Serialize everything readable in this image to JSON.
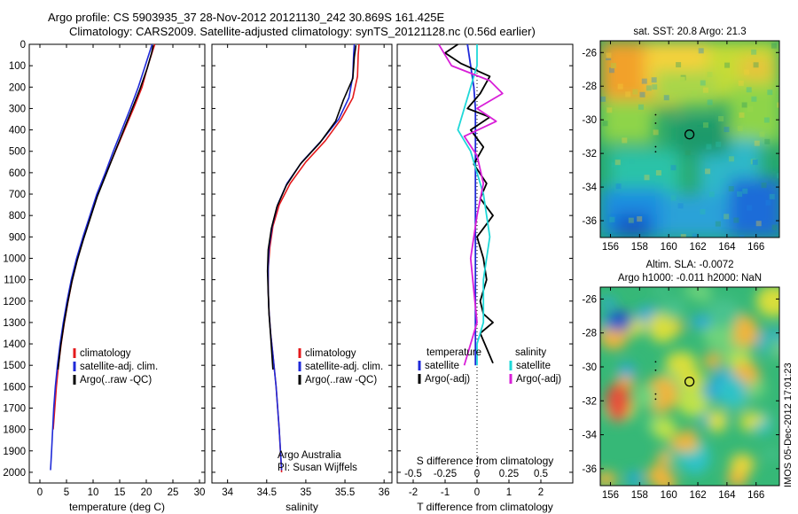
{
  "header": {
    "line1": "Argo profile: CS 5903935_37 28-Nov-2012 20121130_242 30.869S 161.425E",
    "line2": "Climatology: CARS2009. Satellite-adjusted climatology: synTS_20121128.nc (0.56d earlier)"
  },
  "colors": {
    "climatology": "#e41a1c",
    "satellite": "#1f2ad8",
    "argo": "#000000",
    "salinity_satellite": "#1fd8d8",
    "salinity_argo": "#d81fd8",
    "marker": "#000000"
  },
  "chart_data": [
    {
      "type": "line",
      "panel": "temperature",
      "xlabel": "temperature (deg C)",
      "xlim": [
        -2,
        31
      ],
      "xticks": [
        0,
        5,
        10,
        15,
        20,
        25,
        30
      ],
      "ylabel": "",
      "ylim": [
        2050,
        0
      ],
      "yticks": [
        0,
        100,
        200,
        300,
        400,
        500,
        600,
        700,
        800,
        900,
        1000,
        1100,
        1200,
        1300,
        1400,
        1500,
        1600,
        1700,
        1800,
        1900,
        2000
      ],
      "legend": {
        "placement": "lower-middle",
        "entries": [
          "climatology",
          "satellite-adj. clim.",
          "Argo(..raw -QC)"
        ]
      },
      "series": [
        {
          "name": "climatology",
          "color_key": "climatology",
          "x": [
            21.6,
            21.2,
            20.3,
            19.2,
            17.6,
            15.9,
            14.2,
            12.5,
            10.9,
            9.6,
            8.3,
            7.1,
            6.1,
            5.3,
            4.6,
            4.0,
            3.5,
            3.1,
            2.8,
            2.5
          ],
          "y": [
            0,
            30,
            100,
            200,
            300,
            400,
            500,
            600,
            700,
            800,
            900,
            1000,
            1100,
            1200,
            1300,
            1400,
            1500,
            1600,
            1700,
            1800
          ]
        },
        {
          "name": "satellite-adj. clim.",
          "color_key": "satellite",
          "x": [
            21.1,
            20.7,
            19.8,
            18.5,
            17.0,
            15.4,
            13.8,
            12.3,
            10.7,
            9.4,
            8.1,
            6.9,
            5.9,
            5.1,
            4.4,
            3.8,
            3.3,
            2.9,
            2.6,
            2.4,
            2.2,
            2.0
          ],
          "y": [
            0,
            30,
            100,
            200,
            300,
            400,
            500,
            600,
            700,
            800,
            900,
            1000,
            1100,
            1200,
            1300,
            1400,
            1500,
            1600,
            1700,
            1800,
            1900,
            1990
          ]
        },
        {
          "name": "Argo(..raw -QC)",
          "color_key": "argo",
          "x": [
            21.3,
            21.0,
            20.2,
            18.8,
            17.2,
            15.6,
            14.0,
            12.4,
            10.8,
            9.5,
            8.2,
            7.0,
            6.0,
            5.2,
            4.5,
            3.9,
            3.4
          ],
          "y": [
            5,
            40,
            110,
            210,
            310,
            410,
            510,
            610,
            710,
            810,
            910,
            1010,
            1110,
            1210,
            1310,
            1410,
            1520
          ]
        }
      ]
    },
    {
      "type": "line",
      "panel": "salinity",
      "xlabel": "salinity",
      "xlim": [
        33.8,
        36.1
      ],
      "xticks": [
        34,
        34.5,
        35,
        35.5,
        36
      ],
      "ylim": [
        2050,
        0
      ],
      "legend": {
        "placement": "lower-middle",
        "entries": [
          "climatology",
          "satellite-adj. clim.",
          "Argo(..raw -QC)"
        ]
      },
      "notes": [
        "Argo Australia",
        "PI: Susan Wijffels"
      ],
      "series": [
        {
          "name": "climatology",
          "color_key": "climatology",
          "x": [
            35.68,
            35.67,
            35.66,
            35.6,
            35.45,
            35.25,
            35.0,
            34.8,
            34.66,
            34.58,
            34.54,
            34.52,
            34.52,
            34.53,
            34.55,
            34.58,
            34.62,
            34.66,
            34.69
          ],
          "y": [
            0,
            50,
            150,
            250,
            350,
            450,
            550,
            650,
            750,
            850,
            950,
            1050,
            1150,
            1250,
            1350,
            1450,
            1600,
            1800,
            2000
          ]
        },
        {
          "name": "satellite-adj. clim.",
          "color_key": "satellite",
          "x": [
            35.62,
            35.61,
            35.6,
            35.55,
            35.42,
            35.2,
            34.95,
            34.76,
            34.64,
            34.57,
            34.53,
            34.52,
            34.52,
            34.53,
            34.55,
            34.58,
            34.62,
            34.66,
            34.69
          ],
          "y": [
            0,
            50,
            150,
            250,
            350,
            450,
            550,
            650,
            750,
            850,
            950,
            1050,
            1150,
            1250,
            1350,
            1450,
            1600,
            1800,
            1990
          ]
        },
        {
          "name": "Argo(..raw -QC)",
          "color_key": "argo",
          "x": [
            35.64,
            35.62,
            35.6,
            35.48,
            35.38,
            35.18,
            34.93,
            34.75,
            34.63,
            34.56,
            34.52,
            34.51,
            34.52,
            34.53,
            34.55,
            34.58
          ],
          "y": [
            5,
            60,
            160,
            260,
            360,
            460,
            560,
            660,
            760,
            860,
            960,
            1060,
            1160,
            1260,
            1360,
            1520
          ]
        }
      ]
    },
    {
      "type": "line",
      "panel": "difference",
      "xlabel": "T difference from climatology",
      "xlabel_top": "S difference from climatology",
      "xlim": [
        -2.5,
        3
      ],
      "xticks": [
        -2,
        -1,
        0,
        1,
        2
      ],
      "s_ticks": [
        -0.5,
        -0.25,
        0,
        0.25,
        0.5
      ],
      "ylim": [
        2050,
        0
      ],
      "legend_left": {
        "title": "temperature",
        "entries": [
          "satellite",
          "Argo(-adj)"
        ]
      },
      "legend_right": {
        "title": "salinity",
        "entries": [
          "satellite",
          "Argo(-adj)"
        ]
      },
      "series": [
        {
          "name": "satellite",
          "group": "temperature",
          "color_key": "satellite",
          "x": [
            -0.3,
            -0.2,
            -0.1,
            -0.05,
            -0.05,
            -0.05,
            -0.05,
            -0.05,
            -0.05,
            -0.05,
            -0.05,
            -0.05,
            -0.05
          ],
          "y": [
            0,
            100,
            200,
            300,
            400,
            500,
            700,
            900,
            1100,
            1300,
            1400,
            1450,
            1500
          ]
        },
        {
          "name": "Argo(-adj)",
          "group": "temperature",
          "color_key": "argo",
          "x": [
            -0.6,
            -1.0,
            -0.5,
            0.4,
            0.1,
            -0.3,
            0.4,
            -0.2,
            0.2,
            -0.1,
            0.3,
            0.1,
            0.5,
            0.0,
            0.2,
            0.3,
            0.1,
            0.2,
            0.5,
            0.1,
            0.3,
            0.5
          ],
          "y": [
            0,
            40,
            90,
            150,
            230,
            300,
            340,
            400,
            480,
            560,
            650,
            720,
            800,
            900,
            1000,
            1100,
            1200,
            1260,
            1300,
            1350,
            1420,
            1490
          ]
        },
        {
          "name": "satellite",
          "group": "salinity",
          "color_key": "salinity_satellite",
          "x": [
            0.0,
            0.0,
            -0.05,
            -0.1,
            -0.15,
            -0.05,
            0.05,
            0.1,
            0.05,
            0.05,
            0.05,
            0.0,
            0.0
          ],
          "y": [
            0,
            100,
            200,
            300,
            400,
            500,
            700,
            900,
            1100,
            1200,
            1300,
            1400,
            1500
          ]
        },
        {
          "name": "Argo(-adj)",
          "group": "salinity",
          "color_key": "salinity_argo",
          "x": [
            -0.3,
            -0.2,
            0.1,
            0.2,
            0.0,
            0.15,
            -0.1,
            0.0,
            0.05,
            0.0,
            -0.05,
            0.0,
            -0.1
          ],
          "y": [
            0,
            100,
            170,
            230,
            300,
            360,
            430,
            520,
            650,
            800,
            1000,
            1300,
            1500
          ]
        }
      ]
    },
    {
      "type": "heatmap",
      "panel": "sst-map",
      "title": "sat. SST: 20.8  Argo: 21.3",
      "xticks": [
        156,
        158,
        160,
        162,
        164,
        166
      ],
      "yticks": [
        -26,
        -28,
        -30,
        -32,
        -34,
        -36
      ],
      "xlim": [
        155.3,
        167.6
      ],
      "ylim": [
        -37.0,
        -25.3
      ],
      "profile_location": {
        "lon": 161.425,
        "lat": -30.869
      }
    },
    {
      "type": "heatmap",
      "panel": "sla-map",
      "title": "Altim. SLA: -0.0072",
      "subtitle": "Argo h1000: -0.011 h2000: NaN",
      "xticks": [
        156,
        158,
        160,
        162,
        164,
        166
      ],
      "yticks": [
        -26,
        -28,
        -30,
        -32,
        -34,
        -36
      ],
      "xlim": [
        155.3,
        167.6
      ],
      "ylim": [
        -37.0,
        -25.3
      ],
      "profile_location": {
        "lon": 161.425,
        "lat": -30.869
      }
    }
  ],
  "footer": {
    "vertical_stamp": "IMOS 05-Dec-2012 17:01:23",
    "argo_note_1": "Argo Australia",
    "argo_note_2": "PI: Susan Wijffels"
  }
}
